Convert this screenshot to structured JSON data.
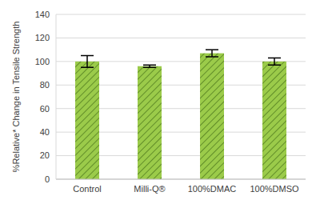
{
  "chart_data": {
    "type": "bar",
    "categories": [
      "Control",
      "Milli-Q®",
      "100%DMAC",
      "100%DMSO"
    ],
    "values": [
      100,
      96,
      107,
      100
    ],
    "error": [
      5,
      1,
      3,
      3
    ],
    "color": "#9bcb4a",
    "y_label": "%Relative* Change in Tensile Strength",
    "ylim": [
      0,
      140
    ],
    "yticks": [
      0,
      20,
      40,
      60,
      80,
      100,
      120,
      140
    ],
    "grid": true
  }
}
